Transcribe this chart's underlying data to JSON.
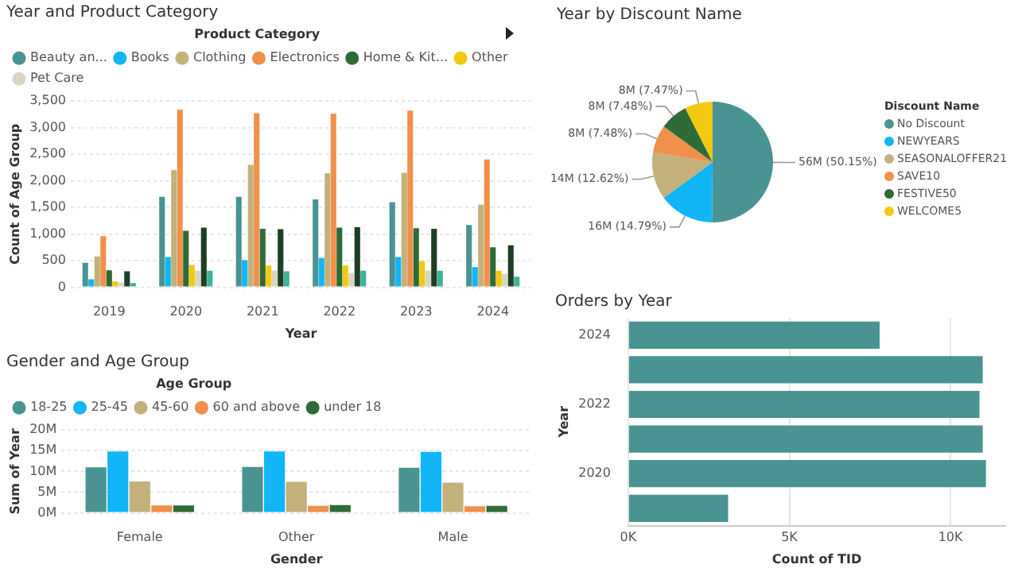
{
  "chart_data": [
    {
      "type": "bar",
      "title": "Year and Product Category",
      "xlabel": "Year",
      "ylabel": "Count of Age Group",
      "legend_title": "Product Category",
      "legend": "top left",
      "grid": "y",
      "categories": [
        "2019",
        "2020",
        "2021",
        "2022",
        "2023",
        "2024"
      ],
      "ylim": [
        0,
        3500
      ],
      "yticks": [
        0,
        {
          "value": 500,
          "label": "500"
        },
        {
          "value": 1000,
          "label": "1,000"
        },
        {
          "value": 1500,
          "label": "1,500"
        },
        {
          "value": 2000,
          "label": "2,000"
        },
        {
          "value": 2500,
          "label": "2,500"
        },
        {
          "value": 3000,
          "label": "3,000"
        },
        {
          "value": 3500,
          "label": "3,500"
        }
      ],
      "series": [
        {
          "name": "Beauty an...",
          "color": "#4a9393",
          "values": [
            460,
            1700,
            1700,
            1650,
            1600,
            1170
          ]
        },
        {
          "name": "Books",
          "color": "#12b5f5",
          "values": [
            150,
            570,
            510,
            550,
            570,
            380
          ]
        },
        {
          "name": "Clothing",
          "color": "#c4b07b",
          "values": [
            580,
            2200,
            2300,
            2140,
            2150,
            1550
          ]
        },
        {
          "name": "Electronics",
          "color": "#f0904a",
          "values": [
            960,
            3340,
            3270,
            3260,
            3320,
            2400
          ]
        },
        {
          "name": "Home & Kit...",
          "color": "#2e6b37",
          "values": [
            320,
            1060,
            1100,
            1120,
            1110,
            750
          ]
        },
        {
          "name": "Other",
          "color": "#f2c811",
          "values": [
            110,
            420,
            410,
            410,
            490,
            310
          ]
        },
        {
          "name": "Pet Care",
          "color": "#d8d6c2",
          "values": [
            90,
            310,
            310,
            270,
            310,
            250
          ]
        },
        {
          "color": "#1e3f25",
          "values": [
            300,
            1120,
            1090,
            1130,
            1100,
            790
          ]
        },
        {
          "color": "#3fb39a",
          "values": [
            80,
            310,
            300,
            310,
            310,
            200
          ]
        }
      ]
    },
    {
      "type": "pie",
      "title": "Year by Discount Name",
      "legend_title": "Discount Name",
      "legend": "right",
      "categories": [
        "No Discount",
        "NEWYEARS",
        "SEASONALOFFER21",
        "SAVE10",
        "FESTIVE50",
        "WELCOME5"
      ],
      "values": [
        50.15,
        14.79,
        12.62,
        7.48,
        7.48,
        7.47
      ],
      "colors": [
        "#4a9393",
        "#12b5f5",
        "#c4b07b",
        "#f0904a",
        "#2e6b37",
        "#f2c811"
      ],
      "value_labels": [
        "56M (50.15%)",
        "16M (14.79%)",
        "14M (12.62%)",
        "8M (7.48%)",
        "8M (7.48%)",
        "8M (7.47%)"
      ]
    },
    {
      "type": "bar",
      "title": "Gender and Age Group",
      "xlabel": "Gender",
      "ylabel": "Sum of Year",
      "legend_title": "Age Group",
      "legend": "top left",
      "grid": "y",
      "categories": [
        "Female",
        "Other",
        "Male"
      ],
      "ylim": [
        0,
        20000000
      ],
      "yticks": [
        {
          "value": 0,
          "label": "0M"
        },
        {
          "value": 5000000,
          "label": "5M"
        },
        {
          "value": 10000000,
          "label": "10M"
        },
        {
          "value": 15000000,
          "label": "15M"
        },
        {
          "value": 20000000,
          "label": "20M"
        }
      ],
      "series": [
        {
          "name": "18-25",
          "color": "#4a9393",
          "values": [
            11000000,
            11100000,
            10900000
          ]
        },
        {
          "name": "25-45",
          "color": "#12b5f5",
          "values": [
            14800000,
            14800000,
            14700000
          ]
        },
        {
          "name": "45-60",
          "color": "#c4b07b",
          "values": [
            7600000,
            7500000,
            7300000
          ]
        },
        {
          "name": "60 and above",
          "color": "#f0904a",
          "values": [
            1800000,
            1700000,
            1600000
          ]
        },
        {
          "name": "under 18",
          "color": "#2e6b37",
          "values": [
            1800000,
            1900000,
            1700000
          ]
        }
      ]
    },
    {
      "type": "bar",
      "orientation": "horizontal",
      "title": "Orders by Year",
      "xlabel": "Count of TID",
      "ylabel": "Year",
      "grid": "x",
      "categories": [
        "2024",
        null,
        "2022",
        null,
        "2020",
        null
      ],
      "xlim": [
        0,
        11700
      ],
      "xticks": [
        {
          "value": 0,
          "label": "0K"
        },
        {
          "value": 5000,
          "label": "5K"
        },
        {
          "value": 10000,
          "label": "10K"
        }
      ],
      "color": "#4a9393",
      "values": [
        7800,
        11000,
        10900,
        11000,
        11100,
        3100
      ]
    }
  ]
}
